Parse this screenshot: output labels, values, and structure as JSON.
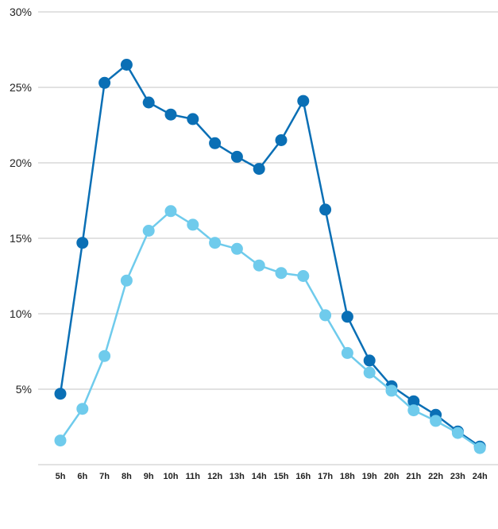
{
  "chart_data": {
    "type": "line",
    "title": "",
    "xlabel": "",
    "ylabel": "",
    "categories": [
      "5h",
      "6h",
      "7h",
      "8h",
      "9h",
      "10h",
      "11h",
      "12h",
      "13h",
      "14h",
      "15h",
      "16h",
      "17h",
      "18h",
      "19h",
      "20h",
      "21h",
      "22h",
      "23h",
      "24h"
    ],
    "y_ticks": [
      "5%",
      "10%",
      "15%",
      "20%",
      "25%",
      "30%"
    ],
    "y_tick_values": [
      5,
      10,
      15,
      20,
      25,
      30
    ],
    "ylim": [
      0,
      30
    ],
    "grid": true,
    "legend": "none",
    "series": [
      {
        "color": "#0a6fb5",
        "values": [
          4.7,
          14.7,
          25.3,
          26.5,
          24.0,
          23.2,
          22.9,
          21.3,
          20.4,
          19.6,
          21.5,
          24.1,
          16.9,
          9.8,
          6.9,
          5.2,
          4.2,
          3.3,
          2.2,
          1.2
        ]
      },
      {
        "color": "#6fcbec",
        "values": [
          1.6,
          3.7,
          7.2,
          12.2,
          15.5,
          16.8,
          15.9,
          14.7,
          14.3,
          13.2,
          12.7,
          12.5,
          9.9,
          7.4,
          6.1,
          4.9,
          3.6,
          2.9,
          2.1,
          1.1
        ]
      }
    ]
  }
}
